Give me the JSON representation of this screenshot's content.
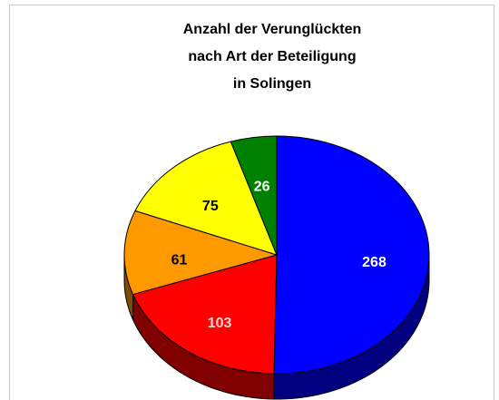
{
  "chart_data": {
    "type": "pie3d",
    "title": [
      "Anzahl der Verunglückten",
      "nach Art der Beteiligung",
      "in Solingen"
    ],
    "values": [
      268,
      103,
      61,
      75,
      26
    ],
    "colors": [
      "#0000ff",
      "#ff0000",
      "#ff9900",
      "#ffff00",
      "#008000"
    ],
    "label_colors": [
      "#ffffff",
      "#ffd0d0",
      "#000000",
      "#000000",
      "#ffffff"
    ]
  }
}
